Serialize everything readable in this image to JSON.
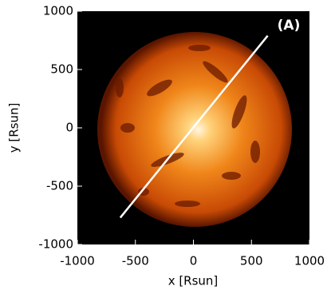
{
  "chart_data": {
    "type": "image",
    "annotation": "(A)",
    "xlabel": "x [Rsun]",
    "ylabel": "y [Rsun]",
    "xlim": [
      -1000,
      1000
    ],
    "ylim": [
      -1000,
      1000
    ],
    "xticks": [
      -1000,
      -500,
      0,
      500,
      1000
    ],
    "yticks": [
      -1000,
      -500,
      0,
      500,
      1000
    ],
    "line": {
      "x": [
        -630,
        640
      ],
      "y": [
        -770,
        790
      ],
      "color": "#ffffff"
    }
  }
}
